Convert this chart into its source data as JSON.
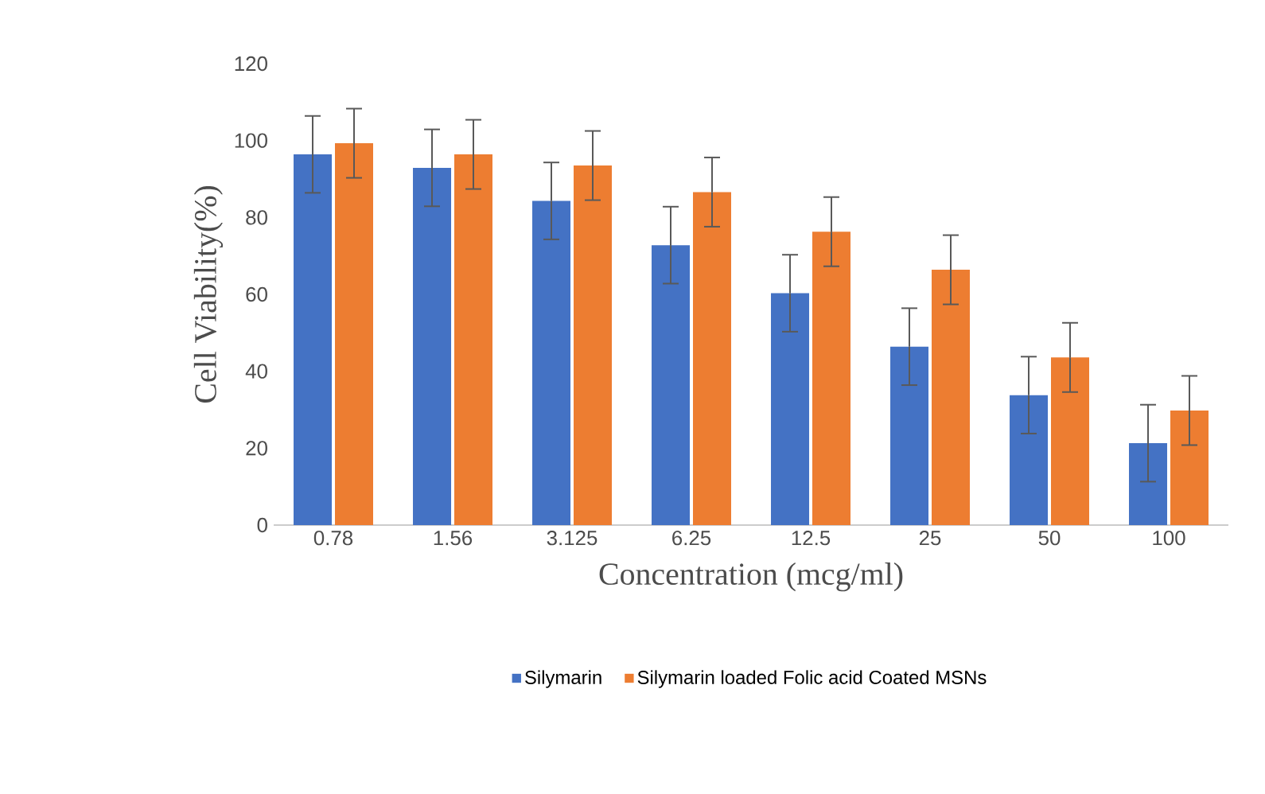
{
  "chart_data": {
    "type": "bar",
    "xlabel": "Concentration (mcg/ml)",
    "ylabel": "Cell Viability(%)",
    "categories": [
      "0.78",
      "1.56",
      "3.125",
      "6.25",
      "12.5",
      "25",
      "50",
      "100"
    ],
    "series": [
      {
        "name": "Silymarin",
        "color": "#4472c4",
        "values": [
          96.4,
          92.9,
          84.3,
          72.8,
          60.3,
          46.4,
          33.8,
          21.3
        ],
        "errors": [
          10,
          10,
          10,
          10,
          10,
          10,
          10,
          10
        ]
      },
      {
        "name": "Silymarin loaded Folic acid Coated MSNs",
        "color": "#ed7d31",
        "values": [
          99.3,
          96.4,
          93.5,
          86.6,
          76.3,
          66.4,
          43.6,
          29.8
        ],
        "errors": [
          9,
          9,
          9,
          9,
          9,
          9,
          9,
          9
        ]
      }
    ],
    "ylim": [
      0,
      120
    ],
    "yticks": [
      0,
      20,
      40,
      60,
      80,
      100,
      120
    ],
    "grid": false,
    "legend": "bottom"
  }
}
